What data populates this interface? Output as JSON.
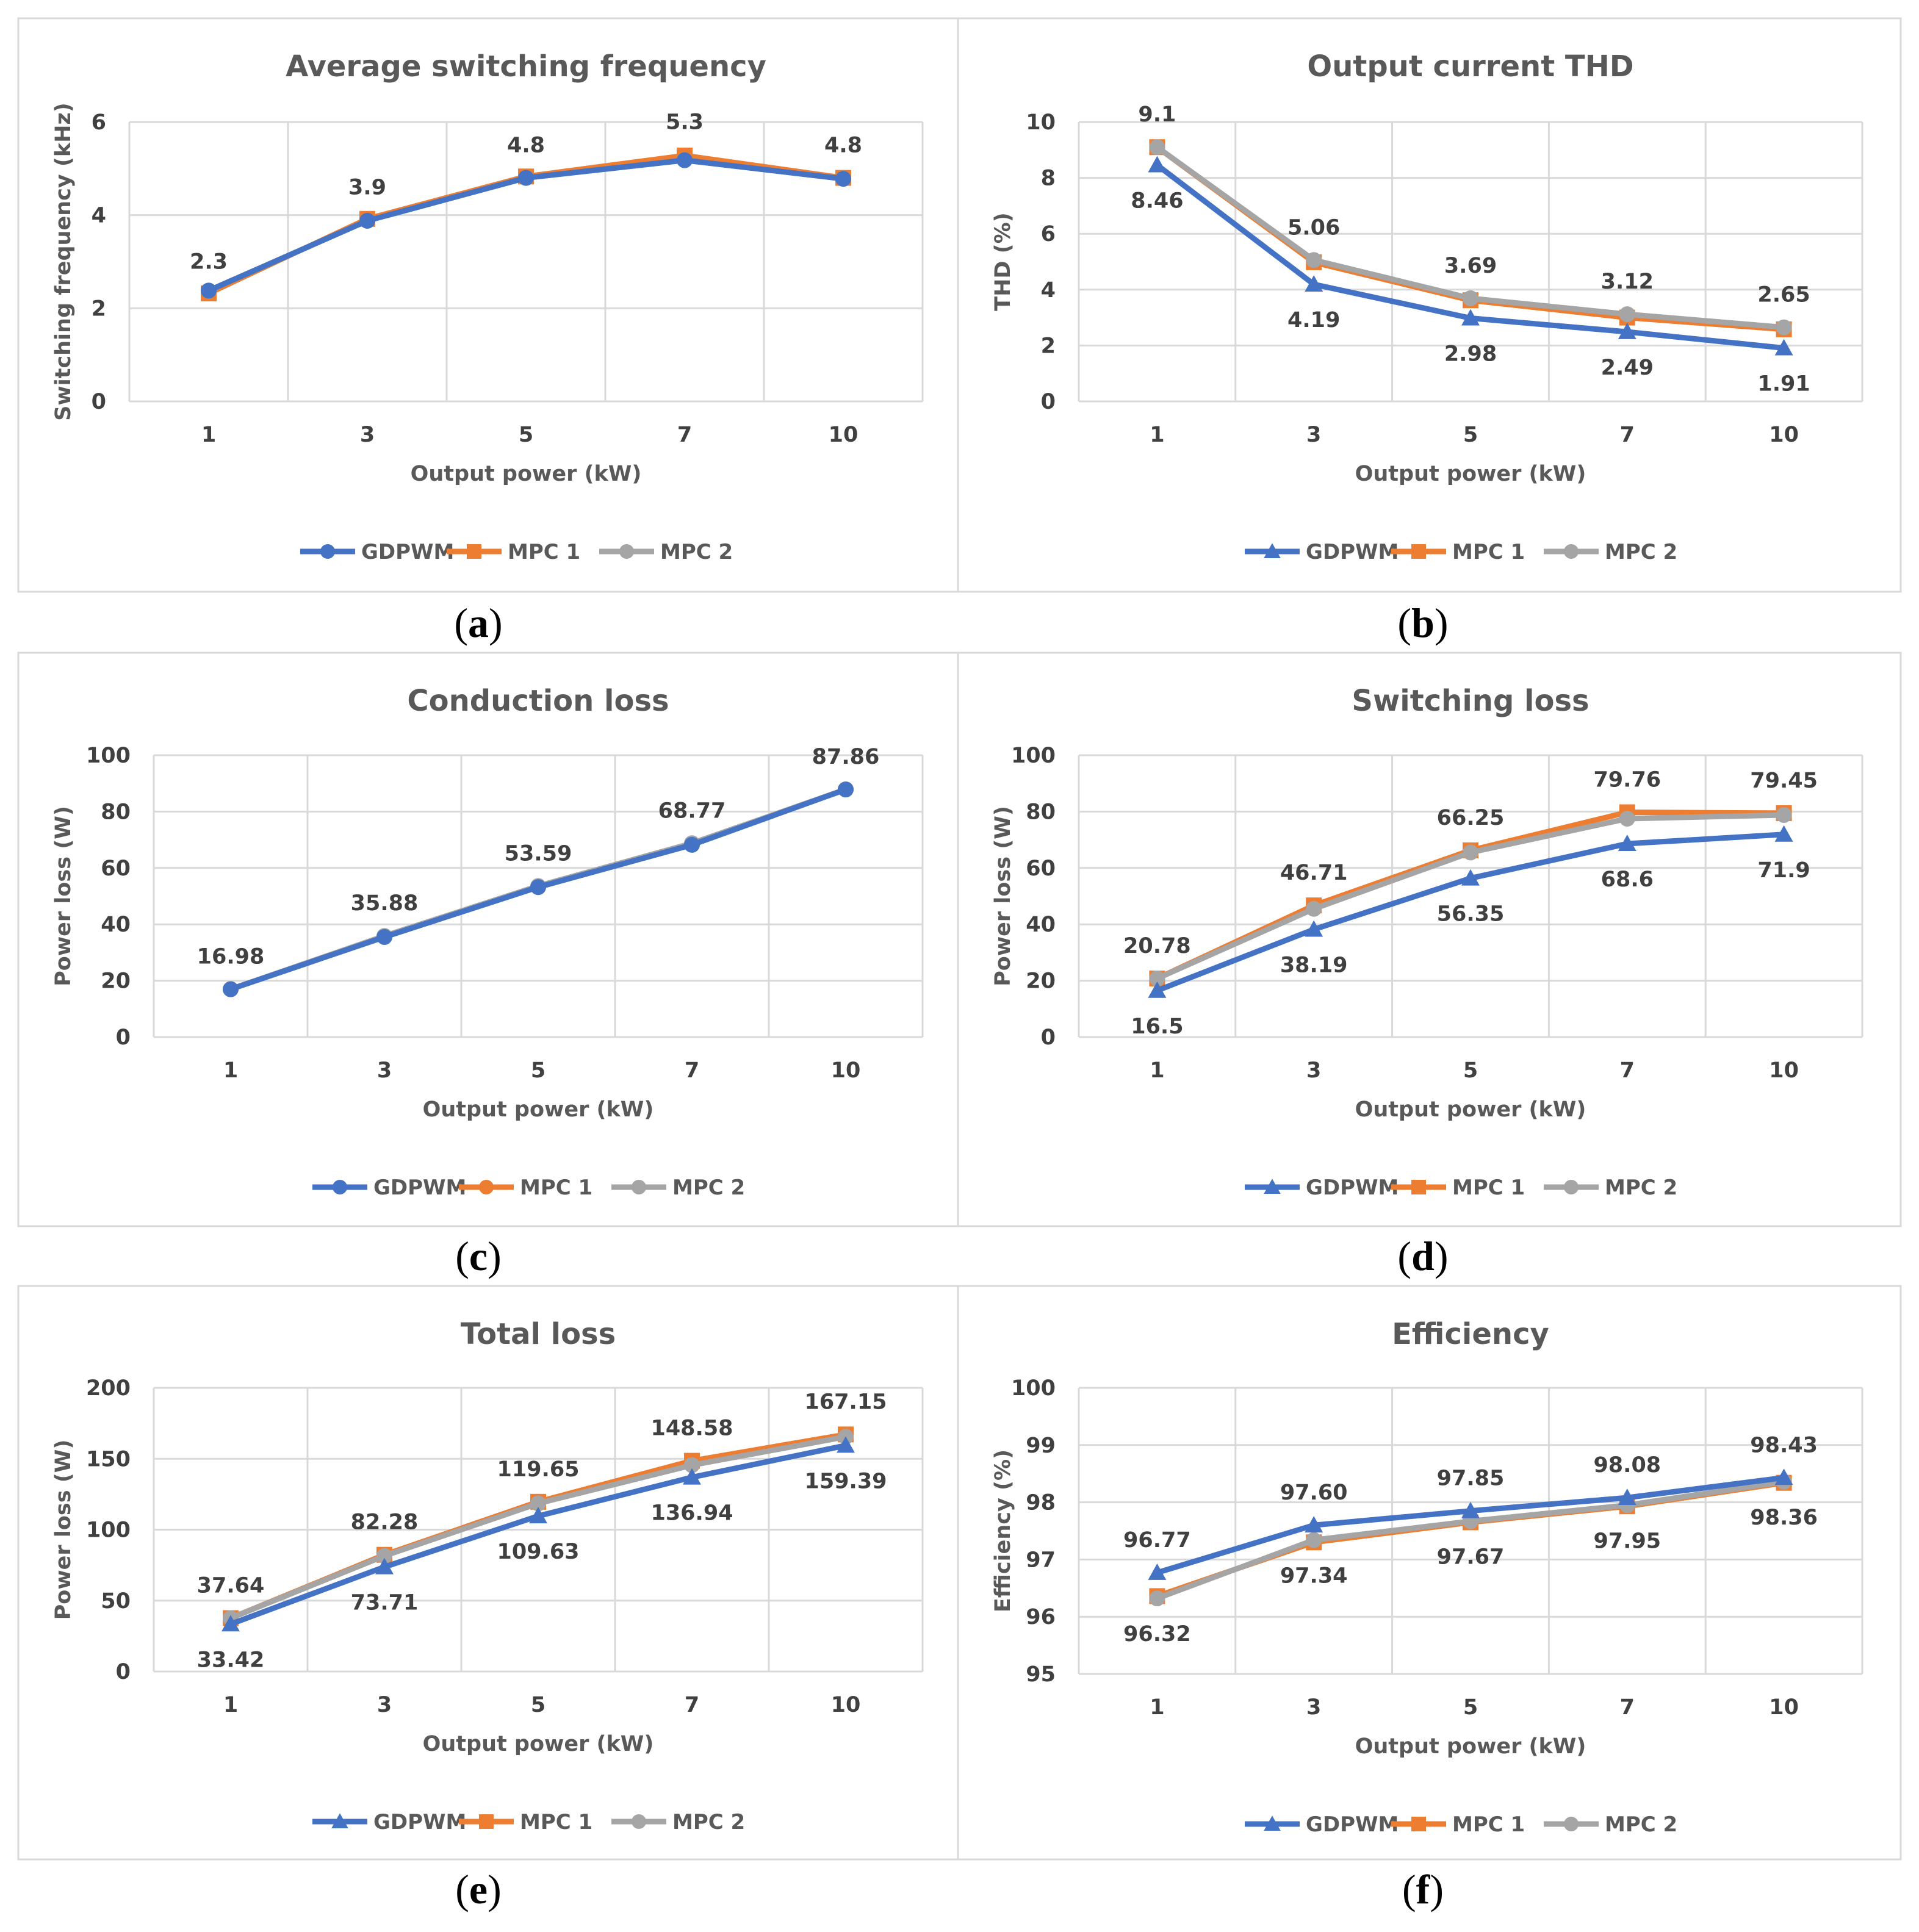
{
  "figure_captions": [
    "a",
    "b",
    "c",
    "d",
    "e",
    "f"
  ],
  "colors": {
    "GDPWM": "#4472C4",
    "MPC 1": "#ED7D31",
    "MPC 2": "#A5A5A5",
    "grid": "#D9D9D9",
    "text": "#595959"
  },
  "chart_data": [
    {
      "id": "a",
      "type": "line",
      "title": "Average switching frequency",
      "xlabel": "Output power (kW)",
      "ylabel": "Switching frequency (kHz)",
      "categories": [
        "1",
        "3",
        "5",
        "7",
        "10"
      ],
      "ylim": [
        0,
        6
      ],
      "yticks": [
        "0",
        "2",
        "4",
        "6"
      ],
      "legend": "bottom",
      "series": [
        {
          "name": "GDPWM",
          "marker": "circle",
          "values": [
            2.38,
            3.88,
            4.8,
            5.18,
            4.78
          ]
        },
        {
          "name": "MPC 1",
          "marker": "square",
          "values": [
            2.32,
            3.92,
            4.83,
            5.28,
            4.8
          ]
        },
        {
          "name": "MPC 2",
          "marker": "circle",
          "values": [
            2.38,
            3.88,
            4.8,
            5.18,
            4.78
          ]
        }
      ],
      "data_labels": [
        {
          "text": "2.3",
          "cat": 0,
          "value": 2.3,
          "pos": "above"
        },
        {
          "text": "3.9",
          "cat": 1,
          "value": 3.9,
          "pos": "above"
        },
        {
          "text": "4.8",
          "cat": 2,
          "value": 4.8,
          "pos": "above"
        },
        {
          "text": "5.3",
          "cat": 3,
          "value": 5.3,
          "pos": "above"
        },
        {
          "text": "4.8",
          "cat": 4,
          "value": 4.8,
          "pos": "above"
        }
      ]
    },
    {
      "id": "b",
      "type": "line",
      "title": "Output current THD",
      "xlabel": "Output power (kW)",
      "ylabel": "THD (%)",
      "categories": [
        "1",
        "3",
        "5",
        "7",
        "10"
      ],
      "ylim": [
        0,
        10
      ],
      "yticks": [
        "0",
        "2",
        "4",
        "6",
        "8",
        "10"
      ],
      "legend": "bottom",
      "series": [
        {
          "name": "GDPWM",
          "marker": "triangle",
          "values": [
            8.46,
            4.19,
            2.98,
            2.49,
            1.91
          ]
        },
        {
          "name": "MPC 1",
          "marker": "square",
          "values": [
            9.1,
            4.98,
            3.62,
            3.0,
            2.58
          ]
        },
        {
          "name": "MPC 2",
          "marker": "circle",
          "values": [
            9.1,
            5.06,
            3.69,
            3.12,
            2.65
          ]
        }
      ],
      "data_labels": [
        {
          "text": "9.1",
          "cat": 0,
          "value": 9.1,
          "pos": "above"
        },
        {
          "text": "5.06",
          "cat": 1,
          "value": 5.06,
          "pos": "above"
        },
        {
          "text": "3.69",
          "cat": 2,
          "value": 3.69,
          "pos": "above"
        },
        {
          "text": "3.12",
          "cat": 3,
          "value": 3.12,
          "pos": "above"
        },
        {
          "text": "2.65",
          "cat": 4,
          "value": 2.65,
          "pos": "above"
        },
        {
          "text": "8.46",
          "cat": 0,
          "value": 8.46,
          "pos": "below"
        },
        {
          "text": "4.19",
          "cat": 1,
          "value": 4.19,
          "pos": "below"
        },
        {
          "text": "2.98",
          "cat": 2,
          "value": 2.98,
          "pos": "below"
        },
        {
          "text": "2.49",
          "cat": 3,
          "value": 2.49,
          "pos": "below"
        },
        {
          "text": "1.91",
          "cat": 4,
          "value": 1.91,
          "pos": "below"
        }
      ]
    },
    {
      "id": "c",
      "type": "line",
      "title": "Conduction loss",
      "xlabel": "Output power (kW)",
      "ylabel": "Power loss (W)",
      "categories": [
        "1",
        "3",
        "5",
        "7",
        "10"
      ],
      "ylim": [
        0,
        100
      ],
      "yticks": [
        "0",
        "20",
        "40",
        "60",
        "80",
        "100"
      ],
      "legend": "bottom",
      "series": [
        {
          "name": "GDPWM",
          "marker": "circle",
          "values": [
            16.98,
            35.5,
            53.2,
            68.2,
            87.86
          ]
        },
        {
          "name": "MPC 1",
          "marker": "circle",
          "values": [
            16.98,
            35.7,
            53.4,
            68.6,
            87.86
          ]
        },
        {
          "name": "MPC 2",
          "marker": "circle",
          "values": [
            16.98,
            35.88,
            53.59,
            68.77,
            87.86
          ]
        }
      ],
      "data_labels": [
        {
          "text": "16.98",
          "cat": 0,
          "value": 16.98,
          "pos": "above"
        },
        {
          "text": "35.88",
          "cat": 1,
          "value": 35.88,
          "pos": "above"
        },
        {
          "text": "53.59",
          "cat": 2,
          "value": 53.59,
          "pos": "above"
        },
        {
          "text": "68.77",
          "cat": 3,
          "value": 68.77,
          "pos": "above"
        },
        {
          "text": "87.86",
          "cat": 4,
          "value": 87.86,
          "pos": "above"
        }
      ]
    },
    {
      "id": "d",
      "type": "line",
      "title": "Switching loss",
      "xlabel": "Output power (kW)",
      "ylabel": "Power loss (W)",
      "categories": [
        "1",
        "3",
        "5",
        "7",
        "10"
      ],
      "ylim": [
        0,
        100
      ],
      "yticks": [
        "0",
        "20",
        "40",
        "60",
        "80",
        "100"
      ],
      "legend": "bottom",
      "series": [
        {
          "name": "GDPWM",
          "marker": "triangle",
          "values": [
            16.5,
            38.19,
            56.35,
            68.6,
            71.9
          ]
        },
        {
          "name": "MPC 1",
          "marker": "square",
          "values": [
            20.78,
            46.71,
            66.25,
            79.76,
            79.45
          ]
        },
        {
          "name": "MPC 2",
          "marker": "circle",
          "values": [
            20.78,
            45.5,
            65.5,
            77.5,
            78.8
          ]
        }
      ],
      "data_labels": [
        {
          "text": "20.78",
          "cat": 0,
          "value": 20.78,
          "pos": "above"
        },
        {
          "text": "46.71",
          "cat": 1,
          "value": 46.71,
          "pos": "above"
        },
        {
          "text": "66.25",
          "cat": 2,
          "value": 66.25,
          "pos": "above"
        },
        {
          "text": "79.76",
          "cat": 3,
          "value": 79.76,
          "pos": "above"
        },
        {
          "text": "79.45",
          "cat": 4,
          "value": 79.45,
          "pos": "above"
        },
        {
          "text": "16.5",
          "cat": 0,
          "value": 16.5,
          "pos": "below"
        },
        {
          "text": "38.19",
          "cat": 1,
          "value": 38.19,
          "pos": "below"
        },
        {
          "text": "56.35",
          "cat": 2,
          "value": 56.35,
          "pos": "below"
        },
        {
          "text": "68.6",
          "cat": 3,
          "value": 68.6,
          "pos": "below"
        },
        {
          "text": "71.9",
          "cat": 4,
          "value": 71.9,
          "pos": "below"
        }
      ]
    },
    {
      "id": "e",
      "type": "line",
      "title": "Total loss",
      "xlabel": "Output power (kW)",
      "ylabel": "Power loss (W)",
      "categories": [
        "1",
        "3",
        "5",
        "7",
        "10"
      ],
      "ylim": [
        0,
        200
      ],
      "yticks": [
        "0",
        "50",
        "100",
        "150",
        "200"
      ],
      "legend": "bottom",
      "series": [
        {
          "name": "GDPWM",
          "marker": "triangle",
          "values": [
            33.42,
            73.71,
            109.63,
            136.94,
            159.39
          ]
        },
        {
          "name": "MPC 1",
          "marker": "square",
          "values": [
            37.64,
            82.28,
            119.65,
            148.58,
            167.15
          ]
        },
        {
          "name": "MPC 2",
          "marker": "circle",
          "values": [
            37.64,
            81.5,
            118.5,
            145.5,
            165.5
          ]
        }
      ],
      "data_labels": [
        {
          "text": "37.64",
          "cat": 0,
          "value": 37.64,
          "pos": "above"
        },
        {
          "text": "82.28",
          "cat": 1,
          "value": 82.28,
          "pos": "above"
        },
        {
          "text": "119.65",
          "cat": 2,
          "value": 119.65,
          "pos": "above"
        },
        {
          "text": "148.58",
          "cat": 3,
          "value": 148.58,
          "pos": "above"
        },
        {
          "text": "167.15",
          "cat": 4,
          "value": 167.15,
          "pos": "above"
        },
        {
          "text": "33.42",
          "cat": 0,
          "value": 33.42,
          "pos": "below"
        },
        {
          "text": "73.71",
          "cat": 1,
          "value": 73.71,
          "pos": "below"
        },
        {
          "text": "109.63",
          "cat": 2,
          "value": 109.63,
          "pos": "below"
        },
        {
          "text": "136.94",
          "cat": 3,
          "value": 136.94,
          "pos": "below"
        },
        {
          "text": "159.39",
          "cat": 4,
          "value": 159.39,
          "pos": "below"
        }
      ]
    },
    {
      "id": "f",
      "type": "line",
      "title": "Efficiency",
      "xlabel": "Output power (kW)",
      "ylabel": "Efficiency (%)",
      "categories": [
        "1",
        "3",
        "5",
        "7",
        "10"
      ],
      "ylim": [
        95,
        100
      ],
      "yticks": [
        "95",
        "96",
        "97",
        "98",
        "99",
        "100"
      ],
      "legend": "bottom",
      "series": [
        {
          "name": "GDPWM",
          "marker": "triangle",
          "values": [
            96.77,
            97.6,
            97.85,
            98.08,
            98.43
          ]
        },
        {
          "name": "MPC 1",
          "marker": "square",
          "values": [
            96.36,
            97.3,
            97.65,
            97.93,
            98.34
          ]
        },
        {
          "name": "MPC 2",
          "marker": "circle",
          "values": [
            96.32,
            97.34,
            97.67,
            97.95,
            98.36
          ]
        }
      ],
      "data_labels": [
        {
          "text": "96.77",
          "cat": 0,
          "value": 96.77,
          "pos": "above"
        },
        {
          "text": "97.60",
          "cat": 1,
          "value": 97.6,
          "pos": "above"
        },
        {
          "text": "97.85",
          "cat": 2,
          "value": 97.85,
          "pos": "above"
        },
        {
          "text": "98.08",
          "cat": 3,
          "value": 98.08,
          "pos": "above"
        },
        {
          "text": "98.43",
          "cat": 4,
          "value": 98.43,
          "pos": "above"
        },
        {
          "text": "96.32",
          "cat": 0,
          "value": 96.32,
          "pos": "below"
        },
        {
          "text": "97.34",
          "cat": 1,
          "value": 97.34,
          "pos": "below"
        },
        {
          "text": "97.67",
          "cat": 2,
          "value": 97.67,
          "pos": "below"
        },
        {
          "text": "97.95",
          "cat": 3,
          "value": 97.95,
          "pos": "below"
        },
        {
          "text": "98.36",
          "cat": 4,
          "value": 98.36,
          "pos": "below"
        }
      ]
    }
  ]
}
